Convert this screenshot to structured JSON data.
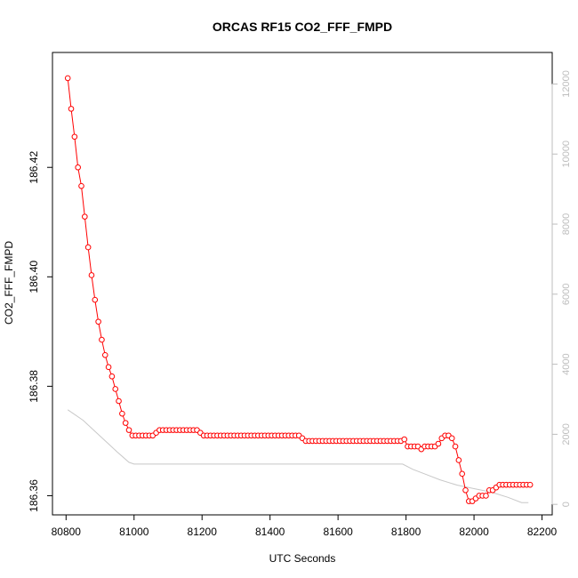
{
  "chart_data": {
    "type": "line",
    "title": "ORCAS RF15 CO2_FFF_FMPD",
    "xlabel": "UTC Seconds",
    "ylabel": "CO2_FFF_FMPD",
    "xlim": [
      80760,
      82230
    ],
    "ylim": [
      186.3565,
      186.441
    ],
    "y2lim": [
      -300,
      12900
    ],
    "x_ticks": [
      80800,
      81000,
      81200,
      81400,
      81600,
      81800,
      82000,
      82200
    ],
    "y_ticks": [
      186.36,
      186.38,
      186.4,
      186.42
    ],
    "y_tick_labels": [
      "186.36",
      "186.38",
      "186.40",
      "186.42"
    ],
    "y2_ticks": [
      0,
      2000,
      4000,
      6000,
      8000,
      10000,
      12000
    ],
    "grid": false,
    "series": [
      {
        "color": "#ff0000",
        "style": "line with open circles",
        "x": [
          80805,
          80815,
          80825,
          80835,
          80845,
          80855,
          80865,
          80875,
          80885,
          80895,
          80905,
          80915,
          80925,
          80935,
          80945,
          80955,
          80965,
          80975,
          80985,
          80995,
          81005,
          81015,
          81025,
          81035,
          81045,
          81055,
          81065,
          81075,
          81085,
          81095,
          81105,
          81115,
          81125,
          81135,
          81145,
          81155,
          81165,
          81175,
          81185,
          81195,
          81205,
          81215,
          81225,
          81235,
          81245,
          81255,
          81265,
          81275,
          81285,
          81295,
          81305,
          81315,
          81325,
          81335,
          81345,
          81355,
          81365,
          81375,
          81385,
          81395,
          81405,
          81415,
          81425,
          81435,
          81445,
          81455,
          81465,
          81475,
          81485,
          81495,
          81505,
          81515,
          81525,
          81535,
          81545,
          81555,
          81565,
          81575,
          81585,
          81595,
          81605,
          81615,
          81625,
          81635,
          81645,
          81655,
          81665,
          81675,
          81685,
          81695,
          81705,
          81715,
          81725,
          81735,
          81745,
          81755,
          81765,
          81775,
          81785,
          81795,
          81805,
          81815,
          81825,
          81835,
          81845,
          81855,
          81865,
          81875,
          81885,
          81895,
          81905,
          81915,
          81925,
          81935,
          81945,
          81955,
          81965,
          81975,
          81985,
          81995,
          82005,
          82015,
          82025,
          82035,
          82045,
          82055,
          82065,
          82075,
          82085,
          82095,
          82105,
          82115,
          82125,
          82135,
          82145,
          82155,
          82165
        ],
        "y": [
          186.4363,
          186.4307,
          186.4256,
          186.42,
          186.4166,
          186.411,
          186.4054,
          186.4003,
          186.3958,
          186.3918,
          186.3885,
          186.3857,
          186.3835,
          186.3818,
          186.3795,
          186.3773,
          186.375,
          186.3733,
          186.372,
          186.371,
          186.371,
          186.371,
          186.371,
          186.371,
          186.371,
          186.371,
          186.3715,
          186.372,
          186.372,
          186.372,
          186.372,
          186.372,
          186.372,
          186.372,
          186.372,
          186.372,
          186.372,
          186.372,
          186.372,
          186.3715,
          186.371,
          186.371,
          186.371,
          186.371,
          186.371,
          186.371,
          186.371,
          186.371,
          186.371,
          186.371,
          186.371,
          186.371,
          186.371,
          186.371,
          186.371,
          186.371,
          186.371,
          186.371,
          186.371,
          186.371,
          186.371,
          186.371,
          186.371,
          186.371,
          186.371,
          186.371,
          186.371,
          186.371,
          186.371,
          186.3705,
          186.37,
          186.37,
          186.37,
          186.37,
          186.37,
          186.37,
          186.37,
          186.37,
          186.37,
          186.37,
          186.37,
          186.37,
          186.37,
          186.37,
          186.37,
          186.37,
          186.37,
          186.37,
          186.37,
          186.37,
          186.37,
          186.37,
          186.37,
          186.37,
          186.37,
          186.37,
          186.37,
          186.37,
          186.37,
          186.3703,
          186.369,
          186.369,
          186.369,
          186.369,
          186.3685,
          186.369,
          186.369,
          186.369,
          186.369,
          186.3695,
          186.3705,
          186.371,
          186.371,
          186.3705,
          186.369,
          186.3665,
          186.364,
          186.361,
          186.359,
          186.359,
          186.3595,
          186.36,
          186.36,
          186.36,
          186.361,
          186.361,
          186.3615,
          186.362,
          186.362,
          186.362,
          186.362,
          186.362,
          186.362,
          186.362,
          186.362,
          186.362,
          186.362
        ]
      },
      {
        "color": "#c8c8c8",
        "style": "line",
        "axis": "right",
        "x": [
          80805,
          80850,
          80900,
          80950,
          80985,
          81000,
          81100,
          81200,
          81300,
          81400,
          81500,
          81600,
          81700,
          81790,
          81820,
          81860,
          81900,
          81950,
          82000,
          82050,
          82100,
          82140,
          82160
        ],
        "y": [
          2700,
          2400,
          1950,
          1500,
          1200,
          1150,
          1150,
          1150,
          1150,
          1150,
          1150,
          1150,
          1150,
          1150,
          1000,
          850,
          700,
          550,
          450,
          350,
          200,
          50,
          50
        ]
      }
    ]
  }
}
